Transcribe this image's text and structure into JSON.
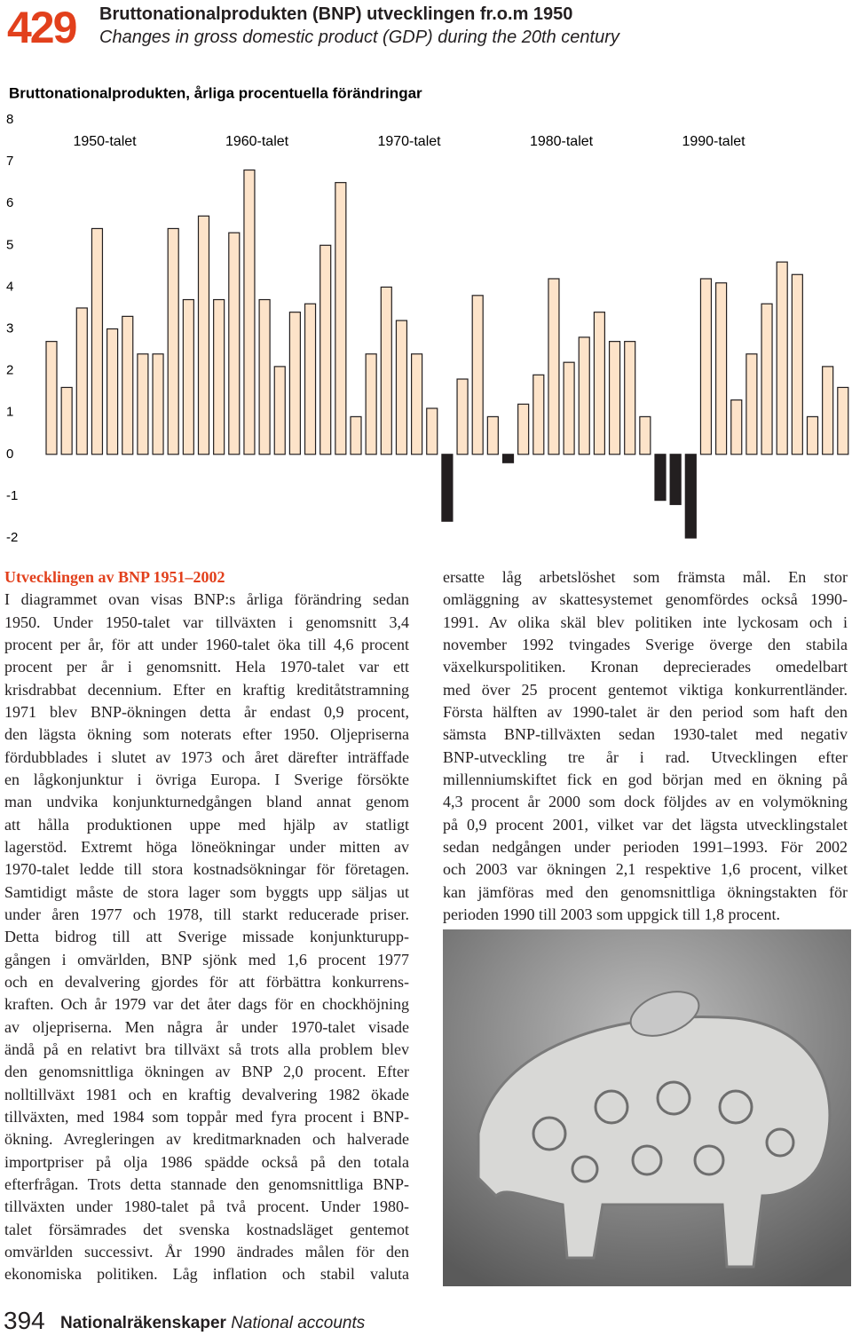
{
  "header": {
    "number": "429",
    "title": "Bruttonationalprodukten (BNP) utvecklingen fr.o.m 1950",
    "subtitle": "Changes in gross domestic product (GDP) during the 20th century"
  },
  "chart_data": {
    "type": "bar",
    "title": "Bruttonationalprodukten, årliga procentuella förändringar",
    "groups": [
      "1950-talet",
      "1960-talet",
      "1970-talet",
      "1980-talet",
      "1990-talet"
    ],
    "values": [
      2.7,
      1.6,
      3.5,
      5.4,
      3.0,
      3.3,
      2.4,
      2.4,
      5.4,
      3.7,
      5.7,
      3.7,
      5.3,
      6.8,
      3.7,
      2.1,
      3.4,
      3.6,
      5.0,
      6.5,
      0.9,
      2.4,
      4.0,
      3.2,
      2.4,
      1.1,
      -1.6,
      1.8,
      3.8,
      0.9,
      -0.2,
      1.2,
      1.9,
      4.2,
      2.2,
      2.8,
      3.4,
      2.7,
      2.7,
      0.9,
      -1.1,
      -1.2,
      -2.0,
      4.2,
      4.1,
      1.3,
      2.4,
      3.6,
      4.6,
      4.3,
      0.9,
      2.1,
      1.6
    ],
    "colors": {
      "positive": "#fde3c9",
      "negative": "#231f20"
    },
    "ylim": [
      -2,
      8
    ],
    "yticks": [
      -2,
      -1,
      0,
      1,
      2,
      3,
      4,
      5,
      6,
      7,
      8
    ],
    "grid": false
  },
  "article": {
    "heading": "Utvecklingen av BNP 1951–2002",
    "left_lines": [
      "I diagrammet ovan visas BNP:s årliga förändring sedan",
      "1950. Under 1950-talet var tillväxten i genomsnitt 3,4",
      "procent per år, för att under 1960-talet öka till 4,6 procent",
      "procent per år i genomsnitt. Hela 1970-talet var ett",
      "krisdrabbat decennium. Efter en kraftig kreditåtstramning",
      "1971 blev BNP-ökningen detta år endast 0,9 procent,",
      "den lägsta ökning som noterats efter 1950. Oljepriserna",
      "fördubblades i slutet av 1973 och året därefter inträffade",
      "en lågkonjunktur i övriga Europa. I Sverige försökte",
      "man undvika konjunkturnedgången bland annat genom",
      "att hålla produktionen uppe med hjälp av statligt",
      "lagerstöd. Extremt höga löneökningar under mitten av",
      "1970-talet ledde till stora kostnadsökningar för företagen.",
      "Samtidigt måste de stora lager som byggts upp säljas ut",
      "under åren 1977 och 1978, till starkt reducerade priser.",
      "Detta bidrog till att Sverige missade konjunkturupp-",
      "gången i omvärlden, BNP sjönk med 1,6 procent 1977",
      "och en devalvering gjordes för att förbättra konkurrens-",
      "kraften. Och år 1979 var det åter dags för en chockhöjning",
      "av oljepriserna. Men några år under 1970-talet visade",
      "ändå på en relativt bra tillväxt så trots alla problem blev",
      "den genomsnittliga ökningen av BNP 2,0 procent. Efter",
      "nolltillväxt 1981 och en kraftig devalvering 1982 ökade",
      "tillväxten, med 1984 som toppår med fyra procent i BNP-",
      "ökning. Avregleringen av kreditmarknaden och halverade",
      "importpriser på olja 1986 spädde också på den totala",
      "efterfrågan. Trots detta stannade den genomsnittliga BNP-",
      "tillväxten under 1980-talet på två procent. Under 1980-",
      "talet försämrades det svenska kostnadsläget gentemot",
      "omvärlden successivt. År 1990 ändrades målen för den",
      "ekonomiska politiken. Låg inflation och stabil valuta"
    ],
    "right_lines": [
      "ersatte låg arbetslöshet som främsta mål. En stor",
      "omläggning av skattesystemet genomfördes också 1990-",
      "1991. Av olika skäl blev politiken inte lyckosam och i",
      "november 1992 tvingades Sverige överge den stabila",
      "växelkurspolitiken. Kronan deprecierades omedelbart",
      "med över 25 procent gentemot viktiga konkurrentländer.",
      "Första hälften av 1990-talet är den period som haft den",
      "sämsta BNP-tillväxten sedan 1930-talet med negativ",
      "BNP-utveckling tre år i rad. Utvecklingen efter",
      "millenniumskiftet fick en god början med en ökning på",
      "4,3 procent år 2000 som dock följdes av en volymökning",
      "på 0,9 procent 2001, vilket var det lägsta utvecklingstalet",
      "sedan nedgången under perioden 1991–1993. För 2002",
      "och 2003 var ökningen 2,1 respektive 1,6 procent, vilket",
      "kan jämföras med den genomsnittliga ökningstakten för",
      "perioden 1990 till 2003 som uppgick till 1,8 procent."
    ]
  },
  "footer": {
    "page": "394",
    "section": "Nationalräkenskaper",
    "section_en": "National accounts"
  }
}
